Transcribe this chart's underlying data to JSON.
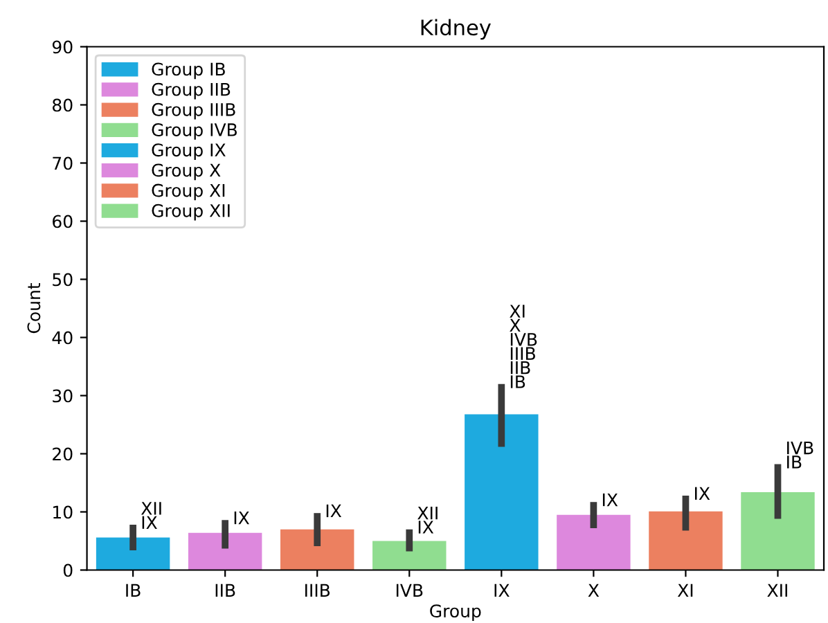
{
  "chart_data": {
    "type": "bar",
    "title": "Kidney",
    "xlabel": "Group",
    "ylabel": "Count",
    "categories": [
      "IB",
      "IIB",
      "IIIB",
      "IVB",
      "IX",
      "X",
      "XI",
      "XII"
    ],
    "series": [
      {
        "name": "Group IB",
        "color": "#1eaadf",
        "values": [
          5.6,
          null,
          null,
          null,
          null,
          null,
          null,
          null
        ],
        "errors": [
          [
            3.4,
            7.8
          ],
          null,
          null,
          null,
          null,
          null,
          null,
          null
        ]
      },
      {
        "name": "Group IIB",
        "color": "#dd88dd",
        "values": [
          null,
          6.4,
          null,
          null,
          null,
          null,
          null,
          null
        ],
        "errors": [
          null,
          [
            3.7,
            8.6
          ],
          null,
          null,
          null,
          null,
          null,
          null
        ]
      },
      {
        "name": "Group IIIB",
        "color": "#ec8060",
        "values": [
          null,
          null,
          7.0,
          null,
          null,
          null,
          null,
          null
        ],
        "errors": [
          null,
          null,
          [
            4.1,
            9.8
          ],
          null,
          null,
          null,
          null,
          null
        ]
      },
      {
        "name": "Group IVB",
        "color": "#90dd90",
        "values": [
          null,
          null,
          null,
          5.0,
          null,
          null,
          null,
          null
        ],
        "errors": [
          null,
          null,
          null,
          [
            3.2,
            7.0
          ],
          null,
          null,
          null,
          null
        ]
      },
      {
        "name": "Group IX",
        "color": "#1eaadf",
        "values": [
          null,
          null,
          null,
          null,
          26.8,
          null,
          null,
          null
        ],
        "errors": [
          null,
          null,
          null,
          null,
          [
            21.2,
            32.0
          ],
          null,
          null,
          null
        ]
      },
      {
        "name": "Group X",
        "color": "#dd88dd",
        "values": [
          null,
          null,
          null,
          null,
          null,
          9.5,
          null,
          null
        ],
        "errors": [
          null,
          null,
          null,
          null,
          null,
          [
            7.2,
            11.7
          ],
          null,
          null
        ]
      },
      {
        "name": "Group XI",
        "color": "#ec8060",
        "values": [
          null,
          null,
          null,
          null,
          null,
          null,
          10.1,
          null
        ],
        "errors": [
          null,
          null,
          null,
          null,
          null,
          null,
          [
            6.8,
            12.8
          ],
          null
        ]
      },
      {
        "name": "Group XII",
        "color": "#90dd90",
        "values": [
          null,
          null,
          null,
          null,
          null,
          null,
          null,
          13.4
        ],
        "errors": [
          null,
          null,
          null,
          null,
          null,
          null,
          null,
          [
            8.8,
            18.2
          ]
        ]
      }
    ],
    "annotations": [
      {
        "text": "XII\nIX",
        "x": "IB",
        "y": 7.8
      },
      {
        "text": "IX",
        "x": "IIB",
        "y": 8.6
      },
      {
        "text": "IX",
        "x": "IIIB",
        "y": 9.8
      },
      {
        "text": "XII\nIX",
        "x": "IVB",
        "y": 7.0
      },
      {
        "text": "XI\nX\nIVB\nIIIB\nIIB\nIB",
        "x": "IX",
        "y": 32.0
      },
      {
        "text": "IX",
        "x": "X",
        "y": 11.7
      },
      {
        "text": "IX",
        "x": "XI",
        "y": 12.8
      },
      {
        "text": "IVB\nIB",
        "x": "XII",
        "y": 18.2
      }
    ],
    "ylim": [
      0,
      90
    ],
    "yticks": [
      0,
      10,
      20,
      30,
      40,
      50,
      60,
      70,
      80,
      90
    ],
    "grid": false,
    "legend": "top left"
  }
}
